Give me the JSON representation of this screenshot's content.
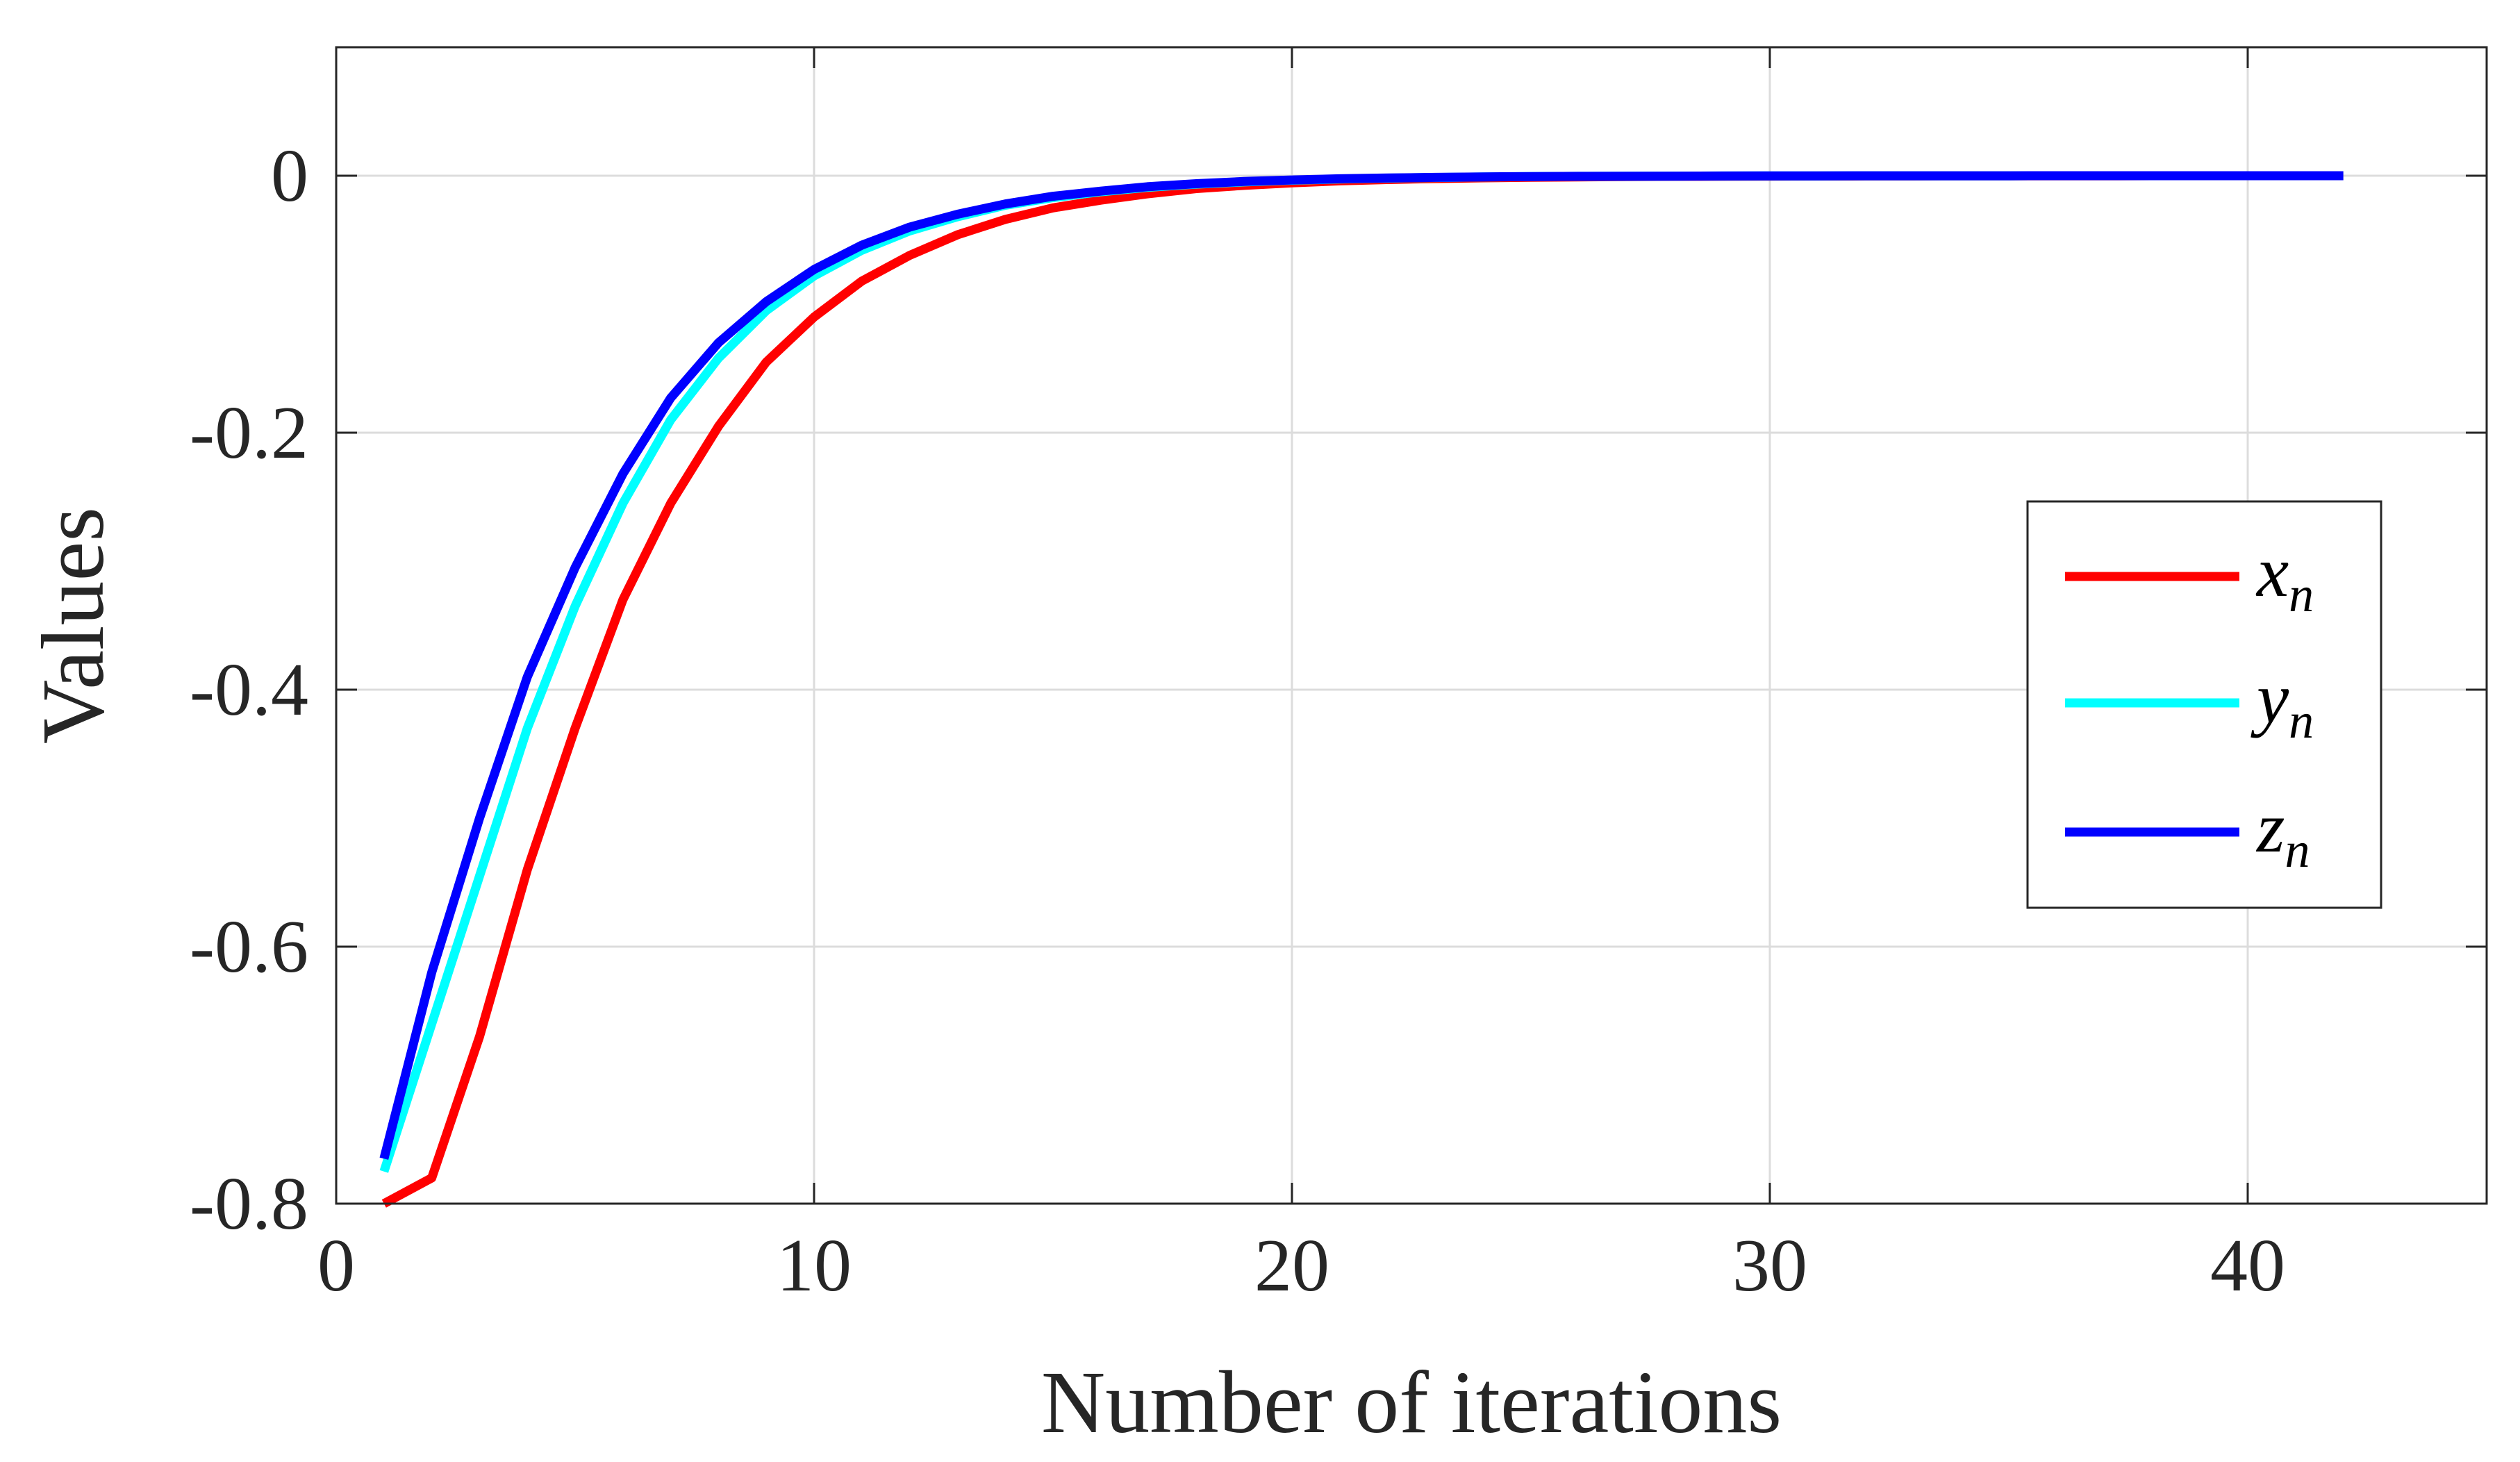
{
  "chart_data": {
    "type": "line",
    "xlabel": "Number of iterations",
    "ylabel": "Values",
    "xlim": [
      0,
      45
    ],
    "ylim": [
      -0.8,
      0.1
    ],
    "xticks": [
      0,
      10,
      20,
      30,
      40
    ],
    "yticks": [
      -0.8,
      -0.6,
      -0.4,
      -0.2,
      0
    ],
    "xtick_labels": [
      "0",
      "10",
      "20",
      "30",
      "40"
    ],
    "ytick_labels": [
      "-0.8",
      "-0.6",
      "-0.4",
      "-0.2",
      "0"
    ],
    "grid": true,
    "legend_position": "right",
    "x": [
      1,
      2,
      3,
      4,
      5,
      6,
      7,
      8,
      9,
      10,
      11,
      12,
      13,
      14,
      15,
      16,
      17,
      18,
      19,
      20,
      21,
      22,
      23,
      24,
      25,
      26,
      27,
      28,
      29,
      30,
      31,
      32,
      33,
      34,
      35,
      36,
      37,
      38,
      39,
      40,
      41,
      42
    ],
    "series": [
      {
        "name": "x",
        "subscript": "n",
        "color": "#ff0000",
        "values": [
          -0.8,
          -0.78,
          -0.67,
          -0.54,
          -0.43,
          -0.33,
          -0.255,
          -0.195,
          -0.145,
          -0.11,
          -0.082,
          -0.062,
          -0.046,
          -0.034,
          -0.025,
          -0.019,
          -0.014,
          -0.01,
          -0.0075,
          -0.0055,
          -0.004,
          -0.003,
          -0.0022,
          -0.0016,
          -0.0012,
          -0.0009,
          -0.0007,
          -0.0005,
          -0.0004,
          -0.0003,
          -0.0002,
          -0.00015,
          -0.0001,
          -8e-05,
          -6e-05,
          -4e-05,
          -3e-05,
          -2e-05,
          -2e-05,
          -1e-05,
          -1e-05,
          0
        ]
      },
      {
        "name": "y",
        "subscript": "n",
        "color": "#00ffff",
        "values": [
          -0.775,
          -0.66,
          -0.545,
          -0.43,
          -0.335,
          -0.255,
          -0.19,
          -0.142,
          -0.105,
          -0.078,
          -0.058,
          -0.043,
          -0.032,
          -0.023,
          -0.017,
          -0.0125,
          -0.009,
          -0.0066,
          -0.0048,
          -0.0035,
          -0.0026,
          -0.0019,
          -0.0014,
          -0.001,
          -0.0007,
          -0.0005,
          -0.0004,
          -0.0003,
          -0.0002,
          -0.00015,
          -0.0001,
          -8e-05,
          -6e-05,
          -4e-05,
          -3e-05,
          -2e-05,
          -2e-05,
          -1e-05,
          -1e-05,
          0,
          0,
          0
        ]
      },
      {
        "name": "z",
        "subscript": "n",
        "color": "#0000ff",
        "values": [
          -0.765,
          -0.62,
          -0.5,
          -0.39,
          -0.305,
          -0.232,
          -0.173,
          -0.13,
          -0.098,
          -0.073,
          -0.054,
          -0.04,
          -0.03,
          -0.022,
          -0.016,
          -0.012,
          -0.0085,
          -0.0062,
          -0.0045,
          -0.0033,
          -0.0024,
          -0.0018,
          -0.0013,
          -0.0009,
          -0.0007,
          -0.0005,
          -0.0004,
          -0.0003,
          -0.0002,
          -0.00015,
          -0.0001,
          -8e-05,
          -6e-05,
          -4e-05,
          -3e-05,
          -2e-05,
          -2e-05,
          -1e-05,
          -1e-05,
          0,
          0,
          0
        ]
      }
    ]
  }
}
